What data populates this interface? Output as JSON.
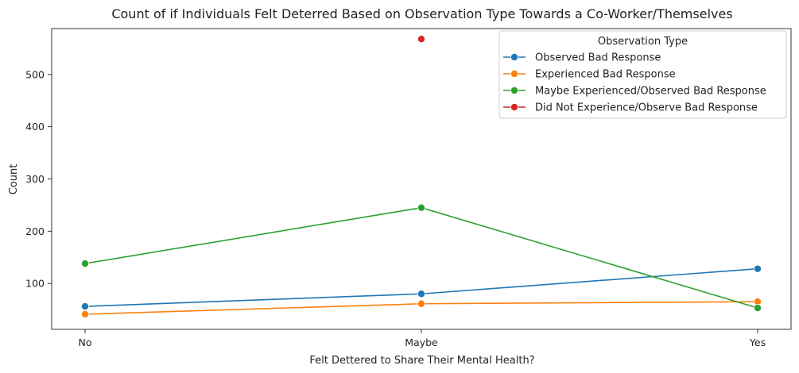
{
  "chart_data": {
    "type": "line",
    "title": "Count of if Individuals Felt Deterred Based on Observation Type Towards a Co-Worker/Themselves",
    "xlabel": "Felt Dettered to Share Their Mental Health?",
    "ylabel": "Count",
    "categories": [
      "No",
      "Maybe",
      "Yes"
    ],
    "ylim": [
      12,
      588
    ],
    "yticks": [
      100,
      200,
      300,
      400,
      500
    ],
    "grid": false,
    "legend": {
      "title": "Observation Type",
      "placement": "top-right"
    },
    "series": [
      {
        "name": "Observed Bad Response",
        "color": "#1f77b4",
        "values": [
          56,
          80,
          128
        ]
      },
      {
        "name": "Experienced Bad Response",
        "color": "#ff7f0e",
        "values": [
          41,
          61,
          65
        ]
      },
      {
        "name": "Maybe Experienced/Observed Bad Response",
        "color": "#2ca02c",
        "values": [
          138,
          245,
          53
        ]
      },
      {
        "name": "Did Not Experience/Observe Bad Response",
        "color": "#d62728",
        "values": [
          null,
          568,
          null
        ]
      }
    ]
  }
}
